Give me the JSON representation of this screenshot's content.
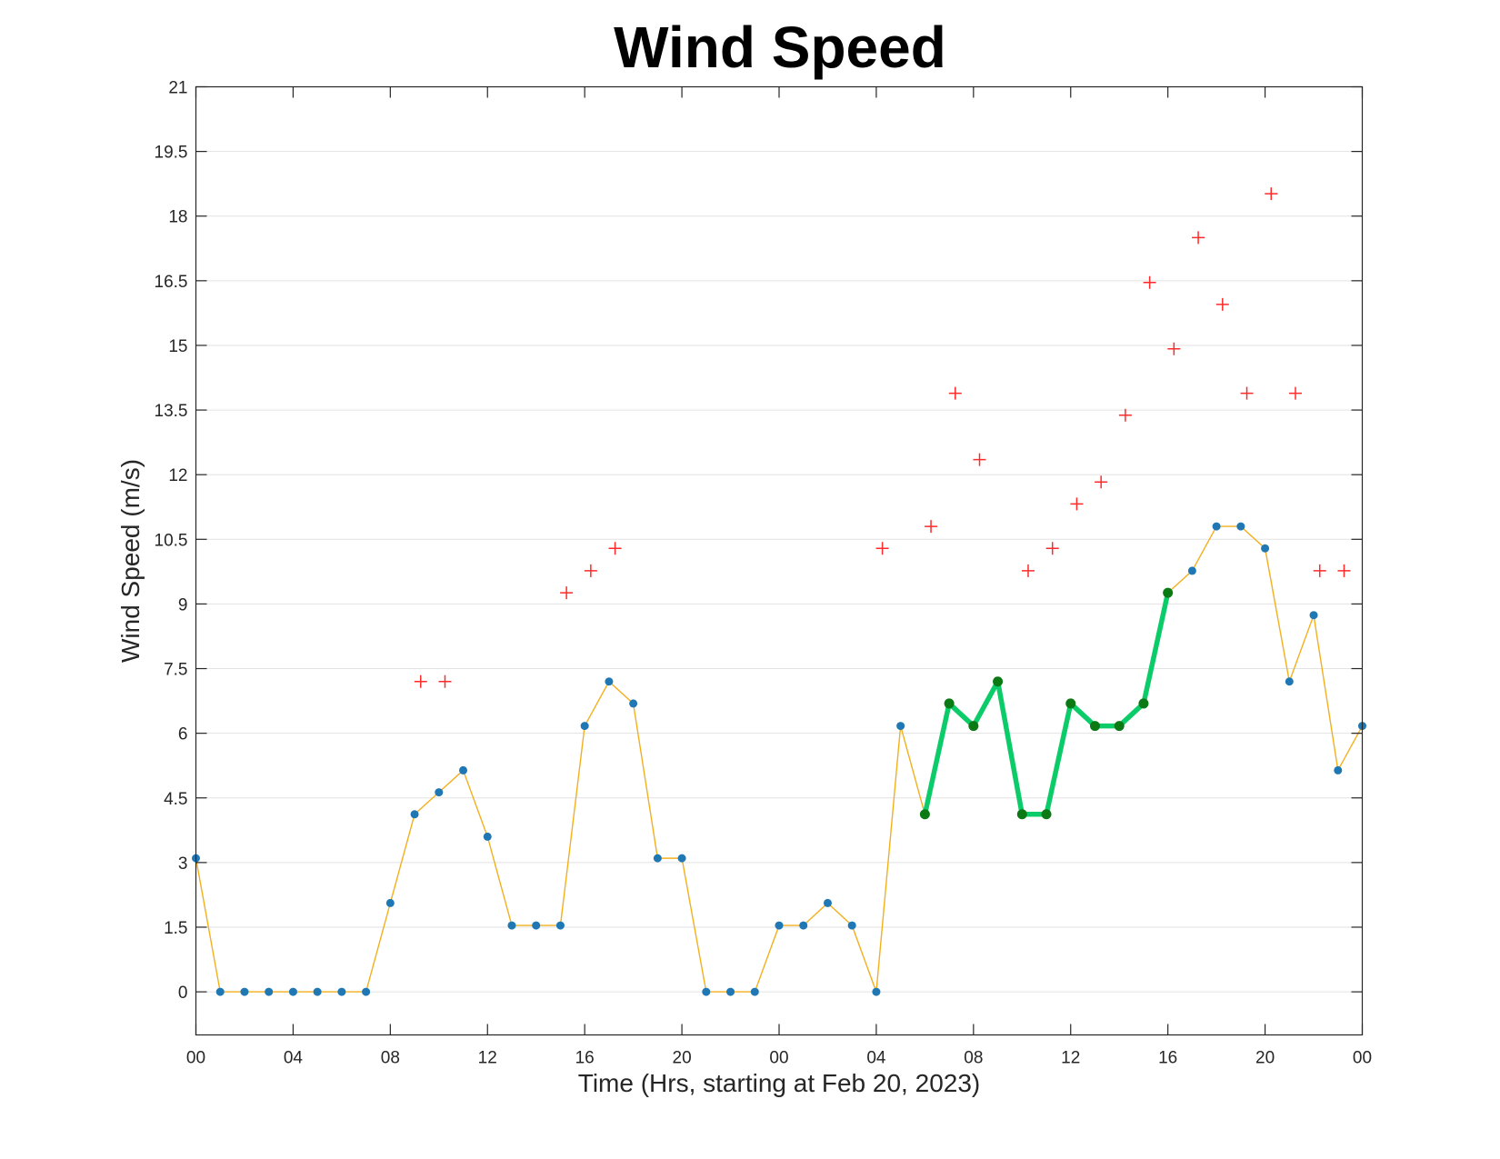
{
  "chart_data": {
    "type": "line",
    "title": "Wind Speed",
    "xlabel": "Time (Hrs, starting at Feb 20, 2023)",
    "ylabel": "Wind Speed (m/s)",
    "ylim": [
      -1.0,
      21
    ],
    "xlim_hours": [
      0,
      48
    ],
    "grid": "y",
    "x_tick_hours": [
      0,
      4,
      8,
      12,
      16,
      20,
      24,
      28,
      32,
      36,
      40,
      44,
      48
    ],
    "x_tick_labels": [
      "00",
      "04",
      "08",
      "12",
      "16",
      "20",
      "00",
      "04",
      "08",
      "12",
      "16",
      "20",
      "00"
    ],
    "y_ticks": [
      0,
      1.5,
      3,
      4.5,
      6,
      7.5,
      9,
      10.5,
      12,
      13.5,
      15,
      16.5,
      18,
      19.5,
      21
    ],
    "y_tick_labels": [
      "0",
      "1.5",
      "3",
      "4.5",
      "6",
      "7.5",
      "9",
      "10.5",
      "12",
      "13.5",
      "15",
      "16.5",
      "18",
      "19.5",
      "21"
    ],
    "series": [
      {
        "style": "thin-line-with-dots",
        "line_color": "#f2b01e",
        "marker_color": "#1f77b4",
        "hours": [
          0,
          1,
          2,
          3,
          4,
          5,
          6,
          7,
          8,
          9,
          10,
          11,
          12,
          13,
          14,
          15,
          16,
          17,
          18,
          19,
          20,
          21,
          22,
          23,
          24,
          25,
          26,
          27,
          28,
          29,
          30,
          31,
          32,
          33,
          34,
          35,
          36,
          37,
          38,
          39,
          40,
          41,
          42,
          43,
          44,
          45,
          46,
          47,
          48
        ],
        "values": [
          3.1,
          0,
          0,
          0,
          0,
          0,
          0,
          0,
          2.06,
          4.12,
          4.63,
          5.14,
          3.6,
          1.54,
          1.54,
          1.54,
          6.17,
          7.2,
          6.69,
          3.1,
          3.1,
          0,
          0,
          0,
          1.54,
          1.54,
          2.06,
          1.54,
          0,
          6.17,
          4.12,
          6.69,
          6.17,
          7.2,
          4.12,
          4.12,
          6.69,
          6.17,
          6.17,
          6.69,
          9.26,
          9.77,
          10.8,
          10.8,
          10.29,
          7.2,
          8.74,
          5.14,
          6.17
        ]
      },
      {
        "style": "thick-highlight",
        "line_color": "#0ccc6a",
        "marker_color": "#0b7a14",
        "hours": [
          30,
          31,
          32,
          33,
          34,
          35,
          36,
          37,
          38,
          39,
          40
        ],
        "values": [
          4.12,
          6.69,
          6.17,
          7.2,
          4.12,
          4.12,
          6.69,
          6.17,
          6.17,
          6.69,
          9.26
        ]
      },
      {
        "style": "plus-markers",
        "marker_color": "#ff2a2a",
        "hours": [
          9.25,
          10.25,
          15.25,
          16.25,
          17.25,
          28.25,
          30.25,
          31.25,
          32.25,
          34.25,
          35.25,
          36.25,
          37.25,
          38.25,
          39.25,
          40.25,
          41.25,
          42.25,
          43.25,
          44.25,
          45.25,
          46.25,
          47.25
        ],
        "values": [
          7.2,
          7.2,
          9.26,
          9.77,
          10.29,
          10.29,
          10.8,
          13.89,
          12.35,
          9.77,
          10.29,
          11.32,
          11.83,
          13.38,
          16.46,
          14.92,
          17.5,
          15.95,
          13.89,
          18.52,
          13.89,
          9.77,
          9.77
        ]
      }
    ]
  }
}
